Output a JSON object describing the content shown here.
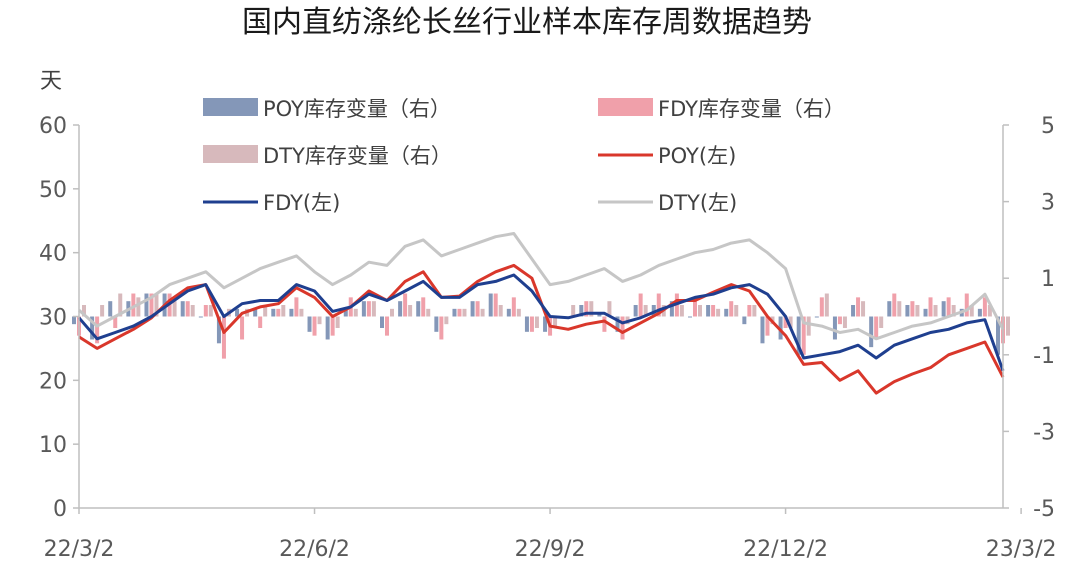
{
  "chart_data": {
    "type": "bar-line-combo",
    "title": "国内直纺涤纶长丝行业样本库存周数据趋势",
    "left_axis": {
      "unit_label": "天",
      "ylim": [
        0,
        60
      ],
      "ticks": [
        "0",
        "10",
        "20",
        "30",
        "40",
        "50",
        "60"
      ]
    },
    "right_axis": {
      "ylim": [
        -5,
        5
      ],
      "ticks": [
        "-5",
        "-3",
        "-1",
        "1",
        "3",
        "5"
      ]
    },
    "x_tick_labels": [
      "22/3/2",
      "22/6/2",
      "22/9/2",
      "22/12/2",
      "23/3/2"
    ],
    "x_tick_index": [
      0,
      13,
      26,
      39,
      52
    ],
    "legend": {
      "placement": "top",
      "entries": [
        "POY库存变量（右）",
        "FDY库存变量（右）",
        "DTY库存变量（右）",
        "POY(左)",
        "FDY(左)",
        "DTY(左)"
      ]
    },
    "colors": {
      "poy_bar": "#8497b8",
      "fdy_bar": "#f0a0aa",
      "dty_bar": "#d7b9bc",
      "poy_line": "#d9372b",
      "fdy_line": "#1f3f8f",
      "dty_line": "#c6c6c6"
    },
    "lines": [
      {
        "name": "POY(左)",
        "axis": "left",
        "values": [
          26.8,
          25.0,
          26.5,
          28.0,
          29.8,
          32.5,
          34.5,
          35.0,
          27.5,
          30.5,
          31.5,
          32.0,
          34.5,
          33.0,
          30.0,
          31.5,
          34.0,
          32.5,
          35.5,
          37.0,
          33.0,
          33.2,
          35.5,
          37.0,
          38.0,
          36.0,
          28.5,
          28.0,
          28.8,
          29.3,
          27.5,
          29.0,
          30.5,
          32.5,
          32.5,
          33.8,
          35.0,
          34.0,
          30.0,
          27.0,
          22.5,
          22.8,
          20.0,
          21.5,
          18.0,
          19.8,
          21.0,
          22.0,
          24.0,
          25.0,
          26.0,
          20.5
        ]
      },
      {
        "name": "FDY(左)",
        "axis": "left",
        "values": [
          29.8,
          26.5,
          27.5,
          28.5,
          30.0,
          32.0,
          34.0,
          35.0,
          30.0,
          32.0,
          32.5,
          32.5,
          35.0,
          34.0,
          30.8,
          31.5,
          33.5,
          32.5,
          34.0,
          35.5,
          33.0,
          33.0,
          35.0,
          35.5,
          36.5,
          34.0,
          30.0,
          29.8,
          30.5,
          30.5,
          29.0,
          29.8,
          31.0,
          32.0,
          33.0,
          33.5,
          34.5,
          35.0,
          33.5,
          30.0,
          23.5,
          24.0,
          24.5,
          25.5,
          23.5,
          25.5,
          26.5,
          27.5,
          28.0,
          29.0,
          29.5,
          21.5
        ]
      },
      {
        "name": "DTY(左)",
        "axis": "left",
        "values": [
          31.0,
          28.5,
          30.0,
          31.5,
          33.0,
          35.0,
          36.0,
          37.0,
          34.5,
          36.0,
          37.5,
          38.5,
          39.5,
          37.0,
          35.0,
          36.5,
          38.5,
          38.0,
          41.0,
          42.0,
          39.5,
          40.5,
          41.5,
          42.5,
          43.0,
          39.0,
          35.0,
          35.5,
          36.5,
          37.5,
          35.5,
          36.5,
          38.0,
          39.0,
          40.0,
          40.5,
          41.5,
          42.0,
          40.0,
          37.5,
          29.0,
          28.5,
          27.5,
          28.0,
          26.5,
          27.5,
          28.5,
          29.0,
          30.0,
          31.0,
          33.5,
          28.0
        ]
      }
    ],
    "bars": [
      {
        "name": "POY库存变量（右）",
        "axis": "right",
        "values": [
          -0.2,
          -0.6,
          0.4,
          0.4,
          0.6,
          0.6,
          0.4,
          0.0,
          -0.7,
          0.2,
          0.2,
          0.2,
          0.2,
          -0.4,
          -0.6,
          0.2,
          0.4,
          -0.3,
          0.4,
          0.4,
          -0.4,
          0.2,
          0.4,
          0.6,
          0.2,
          -0.4,
          -0.4,
          0.0,
          0.3,
          0.1,
          -0.4,
          0.3,
          0.3,
          0.4,
          0.0,
          0.3,
          0.2,
          -0.2,
          -0.7,
          -0.6,
          -1.0,
          0.0,
          -0.6,
          0.3,
          -0.8,
          0.4,
          0.3,
          0.2,
          0.4,
          0.2,
          0.2,
          -1.0
        ]
      },
      {
        "name": "FDY库存变量（右）",
        "axis": "right",
        "values": [
          -0.5,
          -0.7,
          -0.3,
          0.6,
          0.6,
          0.6,
          0.4,
          0.3,
          -1.1,
          -0.6,
          -0.3,
          0.2,
          0.5,
          -0.5,
          -0.5,
          0.5,
          0.4,
          -0.5,
          0.6,
          0.5,
          -0.6,
          0.2,
          0.4,
          0.6,
          0.5,
          -0.4,
          -0.5,
          0.0,
          0.4,
          -0.4,
          -0.6,
          0.6,
          0.6,
          0.6,
          0.5,
          0.3,
          0.4,
          0.3,
          -0.5,
          -0.3,
          -1.0,
          0.5,
          -0.2,
          0.5,
          -0.6,
          0.6,
          0.4,
          0.5,
          0.5,
          0.6,
          0.5,
          -0.7
        ]
      },
      {
        "name": "DTY库存变量（右）",
        "axis": "right",
        "values": [
          0.3,
          0.3,
          0.6,
          0.5,
          0.6,
          0.4,
          0.3,
          0.3,
          0.2,
          0.2,
          0.3,
          0.3,
          0.2,
          -0.2,
          -0.3,
          0.2,
          0.4,
          0.2,
          0.3,
          0.2,
          -0.2,
          0.2,
          0.2,
          0.3,
          0.2,
          -0.3,
          -0.3,
          0.3,
          0.4,
          0.4,
          -0.2,
          0.3,
          0.3,
          0.3,
          0.3,
          0.2,
          0.3,
          0.3,
          -0.2,
          -0.3,
          -0.5,
          0.6,
          -0.3,
          0.4,
          -0.3,
          0.4,
          0.3,
          0.3,
          0.3,
          0.3,
          0.3,
          -0.5
        ]
      }
    ]
  }
}
